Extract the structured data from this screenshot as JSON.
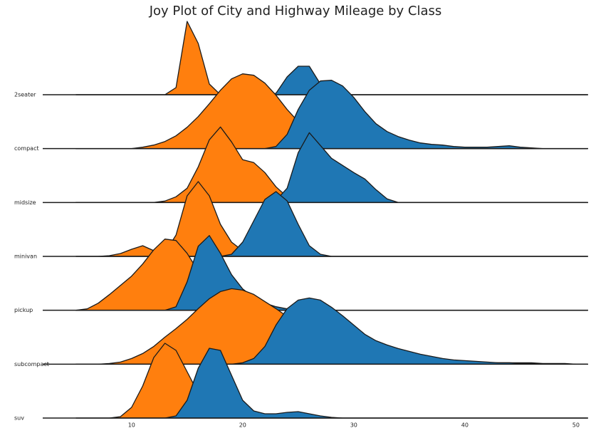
{
  "chart_data": {
    "type": "joy",
    "title": "Joy Plot of City and Highway Mileage by Class",
    "categories": [
      "2seater",
      "compact",
      "midsize",
      "minivan",
      "pickup",
      "subcompact",
      "suv"
    ],
    "x": [
      5,
      6,
      7,
      8,
      9,
      10,
      11,
      12,
      13,
      14,
      15,
      16,
      17,
      18,
      19,
      20,
      21,
      22,
      23,
      24,
      25,
      26,
      27,
      28,
      29,
      30,
      31,
      32,
      33,
      34,
      35,
      36,
      37,
      38,
      39,
      40,
      41,
      42,
      43,
      44,
      45,
      46,
      47,
      48,
      49,
      50,
      51
    ],
    "xlim": [
      2,
      51.1
    ],
    "xticks": [
      10,
      20,
      30,
      40,
      50
    ],
    "series": [
      {
        "color": "#ff7f0e",
        "values": [
          [
            0,
            0,
            0,
            0,
            0,
            0,
            0,
            0,
            0,
            0.1,
            1.03,
            0.72,
            0.15,
            0,
            0,
            0,
            0,
            0,
            0,
            0,
            0,
            0,
            0,
            0,
            0,
            0,
            0,
            0,
            0,
            0,
            0,
            0,
            0,
            0,
            0,
            0,
            0,
            0,
            0,
            0,
            0,
            0,
            0,
            0,
            0,
            0,
            0
          ],
          [
            0,
            0,
            0,
            0,
            0,
            0,
            0.02,
            0.05,
            0.1,
            0.18,
            0.3,
            0.45,
            0.63,
            0.82,
            0.98,
            1.05,
            1.03,
            0.92,
            0.75,
            0.55,
            0.38,
            0.25,
            0.17,
            0.12,
            0.09,
            0.07,
            0.06,
            0.06,
            0.07,
            0.06,
            0.04,
            0.02,
            0.01,
            0,
            0,
            0,
            0,
            0,
            0,
            0,
            0,
            0,
            0,
            0,
            0,
            0,
            0
          ],
          [
            0,
            0,
            0,
            0,
            0,
            0,
            0,
            0,
            0.02,
            0.08,
            0.2,
            0.5,
            0.88,
            1.06,
            0.85,
            0.6,
            0.56,
            0.42,
            0.22,
            0.08,
            0.02,
            0,
            0,
            0,
            0,
            0,
            0,
            0,
            0,
            0,
            0,
            0,
            0,
            0,
            0,
            0,
            0,
            0,
            0,
            0,
            0,
            0,
            0,
            0,
            0,
            0,
            0
          ],
          [
            0,
            0,
            0,
            0.01,
            0.04,
            0.1,
            0.15,
            0.08,
            0.05,
            0.3,
            0.85,
            1.05,
            0.85,
            0.45,
            0.2,
            0.08,
            0.03,
            0.01,
            0,
            0,
            0,
            0,
            0,
            0,
            0,
            0,
            0,
            0,
            0,
            0,
            0,
            0,
            0,
            0,
            0,
            0,
            0,
            0,
            0,
            0,
            0,
            0,
            0,
            0,
            0,
            0,
            0
          ],
          [
            0,
            0.02,
            0.1,
            0.22,
            0.35,
            0.48,
            0.65,
            0.85,
            1.0,
            0.98,
            0.8,
            0.55,
            0.35,
            0.2,
            0.1,
            0.05,
            0.02,
            0,
            0,
            0,
            0,
            0,
            0,
            0,
            0,
            0,
            0,
            0,
            0,
            0,
            0,
            0,
            0,
            0,
            0,
            0,
            0,
            0,
            0,
            0,
            0,
            0,
            0,
            0,
            0,
            0,
            0
          ],
          [
            0,
            0,
            0,
            0.01,
            0.03,
            0.08,
            0.15,
            0.25,
            0.38,
            0.5,
            0.63,
            0.78,
            0.92,
            1.02,
            1.06,
            1.04,
            0.98,
            0.88,
            0.78,
            0.67,
            0.55,
            0.45,
            0.36,
            0.3,
            0.25,
            0.2,
            0.17,
            0.14,
            0.12,
            0.1,
            0.09,
            0.08,
            0.06,
            0.05,
            0.04,
            0.03,
            0.03,
            0.02,
            0.02,
            0.02,
            0.02,
            0.02,
            0.01,
            0.01,
            0.01,
            0,
            0
          ],
          [
            0,
            0,
            0,
            0,
            0.02,
            0.15,
            0.45,
            0.85,
            1.05,
            0.95,
            0.65,
            0.35,
            0.15,
            0.06,
            0.02,
            0,
            0,
            0,
            0,
            0,
            0,
            0,
            0,
            0,
            0,
            0,
            0,
            0,
            0,
            0,
            0,
            0,
            0,
            0,
            0,
            0,
            0,
            0,
            0,
            0,
            0,
            0,
            0,
            0,
            0,
            0,
            0
          ]
        ]
      },
      {
        "color": "#1f77b4",
        "values": [
          [
            0,
            0,
            0,
            0,
            0,
            0,
            0,
            0,
            0,
            0,
            0,
            0,
            0,
            0,
            0,
            0,
            0,
            0,
            0.02,
            0.25,
            0.4,
            0.4,
            0.15,
            0.02,
            0,
            0,
            0,
            0,
            0,
            0,
            0,
            0,
            0,
            0,
            0,
            0,
            0,
            0,
            0,
            0,
            0,
            0,
            0,
            0,
            0,
            0,
            0
          ],
          [
            0,
            0,
            0,
            0,
            0,
            0,
            0,
            0,
            0,
            0,
            0,
            0,
            0,
            0,
            0,
            0,
            0,
            0,
            0.03,
            0.2,
            0.55,
            0.82,
            0.95,
            0.96,
            0.88,
            0.72,
            0.52,
            0.35,
            0.24,
            0.17,
            0.12,
            0.08,
            0.06,
            0.05,
            0.03,
            0.02,
            0.02,
            0.02,
            0.03,
            0.04,
            0.02,
            0.01,
            0,
            0,
            0,
            0,
            0
          ],
          [
            0,
            0,
            0,
            0,
            0,
            0,
            0,
            0,
            0,
            0,
            0,
            0,
            0,
            0,
            0,
            0,
            0,
            0,
            0.03,
            0.2,
            0.7,
            0.98,
            0.8,
            0.62,
            0.52,
            0.42,
            0.33,
            0.18,
            0.05,
            0,
            0,
            0,
            0,
            0,
            0,
            0,
            0,
            0,
            0,
            0,
            0,
            0,
            0,
            0,
            0,
            0,
            0
          ],
          [
            0,
            0,
            0,
            0,
            0,
            0,
            0,
            0,
            0,
            0,
            0,
            0,
            0,
            0,
            0.03,
            0.2,
            0.5,
            0.8,
            0.91,
            0.78,
            0.45,
            0.15,
            0.03,
            0,
            0,
            0,
            0,
            0,
            0,
            0,
            0,
            0,
            0,
            0,
            0,
            0,
            0,
            0,
            0,
            0,
            0,
            0,
            0,
            0,
            0,
            0,
            0
          ],
          [
            0,
            0,
            0,
            0,
            0,
            0,
            0,
            0,
            0,
            0.05,
            0.4,
            0.9,
            1.05,
            0.8,
            0.5,
            0.3,
            0.18,
            0.1,
            0.05,
            0.02,
            0,
            0,
            0,
            0,
            0,
            0,
            0,
            0,
            0,
            0,
            0,
            0,
            0,
            0,
            0,
            0,
            0,
            0,
            0,
            0,
            0,
            0,
            0,
            0,
            0,
            0,
            0
          ],
          [
            0,
            0,
            0,
            0,
            0,
            0,
            0,
            0,
            0,
            0,
            0,
            0,
            0,
            0,
            0,
            0.02,
            0.08,
            0.25,
            0.55,
            0.78,
            0.9,
            0.93,
            0.9,
            0.8,
            0.68,
            0.55,
            0.42,
            0.33,
            0.27,
            0.22,
            0.18,
            0.14,
            0.11,
            0.08,
            0.06,
            0.05,
            0.04,
            0.03,
            0.02,
            0.02,
            0.01,
            0.01,
            0,
            0,
            0,
            0,
            0
          ],
          [
            0,
            0,
            0,
            0,
            0,
            0,
            0,
            0,
            0,
            0.03,
            0.25,
            0.7,
            0.98,
            0.95,
            0.6,
            0.25,
            0.1,
            0.06,
            0.06,
            0.08,
            0.09,
            0.06,
            0.03,
            0.01,
            0,
            0,
            0,
            0,
            0,
            0,
            0,
            0,
            0,
            0,
            0,
            0,
            0,
            0,
            0,
            0,
            0,
            0,
            0,
            0,
            0,
            0,
            0
          ]
        ]
      }
    ]
  }
}
